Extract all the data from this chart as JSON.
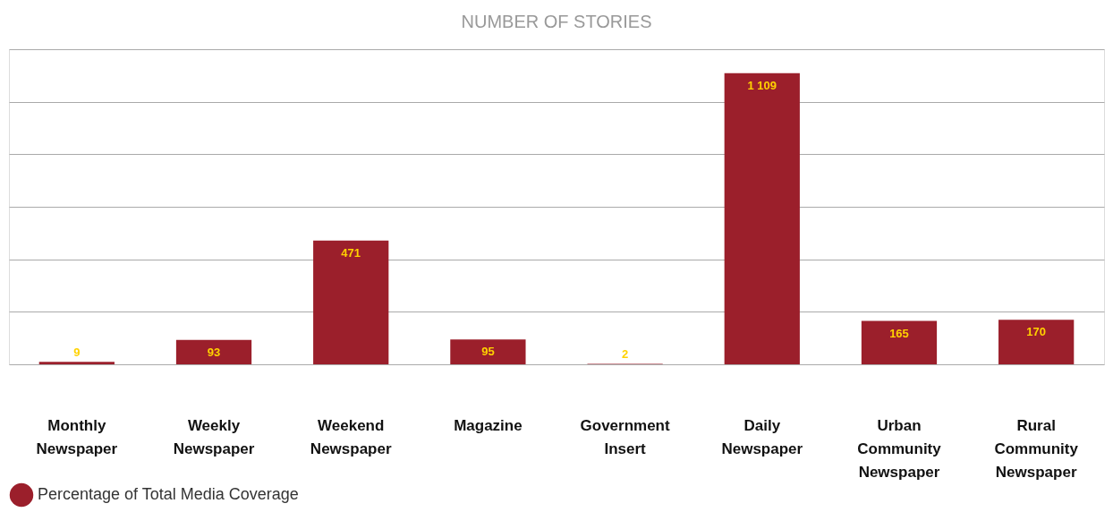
{
  "chart_data": {
    "type": "bar",
    "title": "NUMBER OF STORIES",
    "categories": [
      "Monthly Newspaper",
      "Weekly Newspaper",
      "Weekend Newspaper",
      "Magazine",
      "Government Insert",
      "Daily Newspaper",
      "Urban Community Newspaper",
      "Rural Community Newspaper"
    ],
    "data_labels": true,
    "series": [
      {
        "name": "Percentage of Total Media Coverage",
        "color": "#9b1f2b",
        "values": [
          9,
          93,
          471,
          95,
          2,
          1109,
          165,
          170
        ],
        "value_labels": [
          "9",
          "93",
          "471",
          "95",
          "2",
          "1 109",
          "165",
          "170"
        ]
      }
    ],
    "grid": "y",
    "legend": "bottom left"
  }
}
